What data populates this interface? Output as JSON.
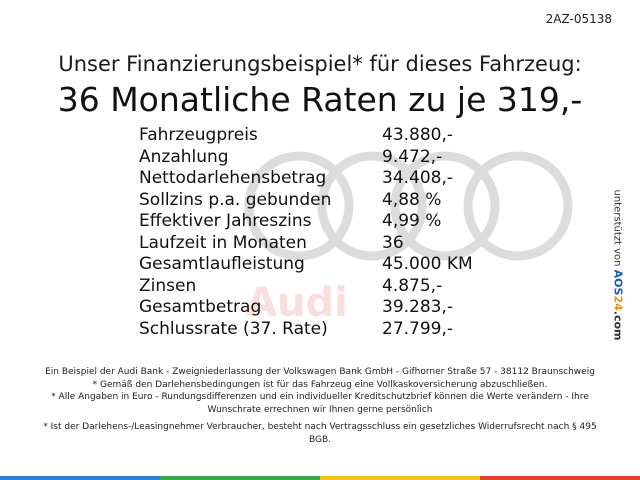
{
  "reference": "2AZ-05138",
  "headline": "Unser Finanzierungsbeispiel* für dieses Fahrzeug:",
  "title": "36 Monatliche Raten zu je 319,-",
  "rows": [
    {
      "label": "Fahrzeugpreis",
      "value": "43.880,-"
    },
    {
      "label": "Anzahlung",
      "value": "9.472,-"
    },
    {
      "label": "Nettodarlehensbetrag",
      "value": "34.408,-"
    },
    {
      "label": "Sollzins p.a. gebunden",
      "value": "4,88 %"
    },
    {
      "label": "Effektiver Jahreszins",
      "value": "4,99 %"
    },
    {
      "label": "Laufzeit in Monaten",
      "value": "36"
    },
    {
      "label": "Gesamtlaufleistung",
      "value": "45.000 KM"
    },
    {
      "label": "Zinsen",
      "value": "4.875,-"
    },
    {
      "label": "Gesamtbetrag",
      "value": "39.283,-"
    },
    {
      "label": "Schlussrate (37. Rate)",
      "value": "27.799,-"
    }
  ],
  "watermark_text": "Audi",
  "side_text": {
    "prefix": "unterstützt von",
    "brand_a": "AOS",
    "brand_n": "24",
    "suffix": ".com"
  },
  "notes": [
    "Ein Beispiel der Audi Bank -  Zweigniederlassung der Volkswagen Bank GmbH - Gifhorner Straße 57 - 38112 Braunschweig",
    "* Gemäß den Darlehensbedingungen ist für das Fahrzeug eine Vollkaskoversicherung abzuschließen.",
    "* Alle Angaben in Euro - Rundungsdifferenzen und ein individueller Kreditschutzbrief können die Werte verändern - Ihre Wunschrate errechnen wir Ihnen gerne persönlich",
    "* Ist der Darlehens-/Leasingnehmer Verbraucher, besteht nach Vertragsschluss ein gesetzliches Widerrufsrecht nach § 495 BGB."
  ],
  "colors": {
    "ring": "#dcdcdc",
    "stripe": [
      "#2f7fd0",
      "#3aa64a",
      "#f2c21c",
      "#e8402f"
    ]
  }
}
